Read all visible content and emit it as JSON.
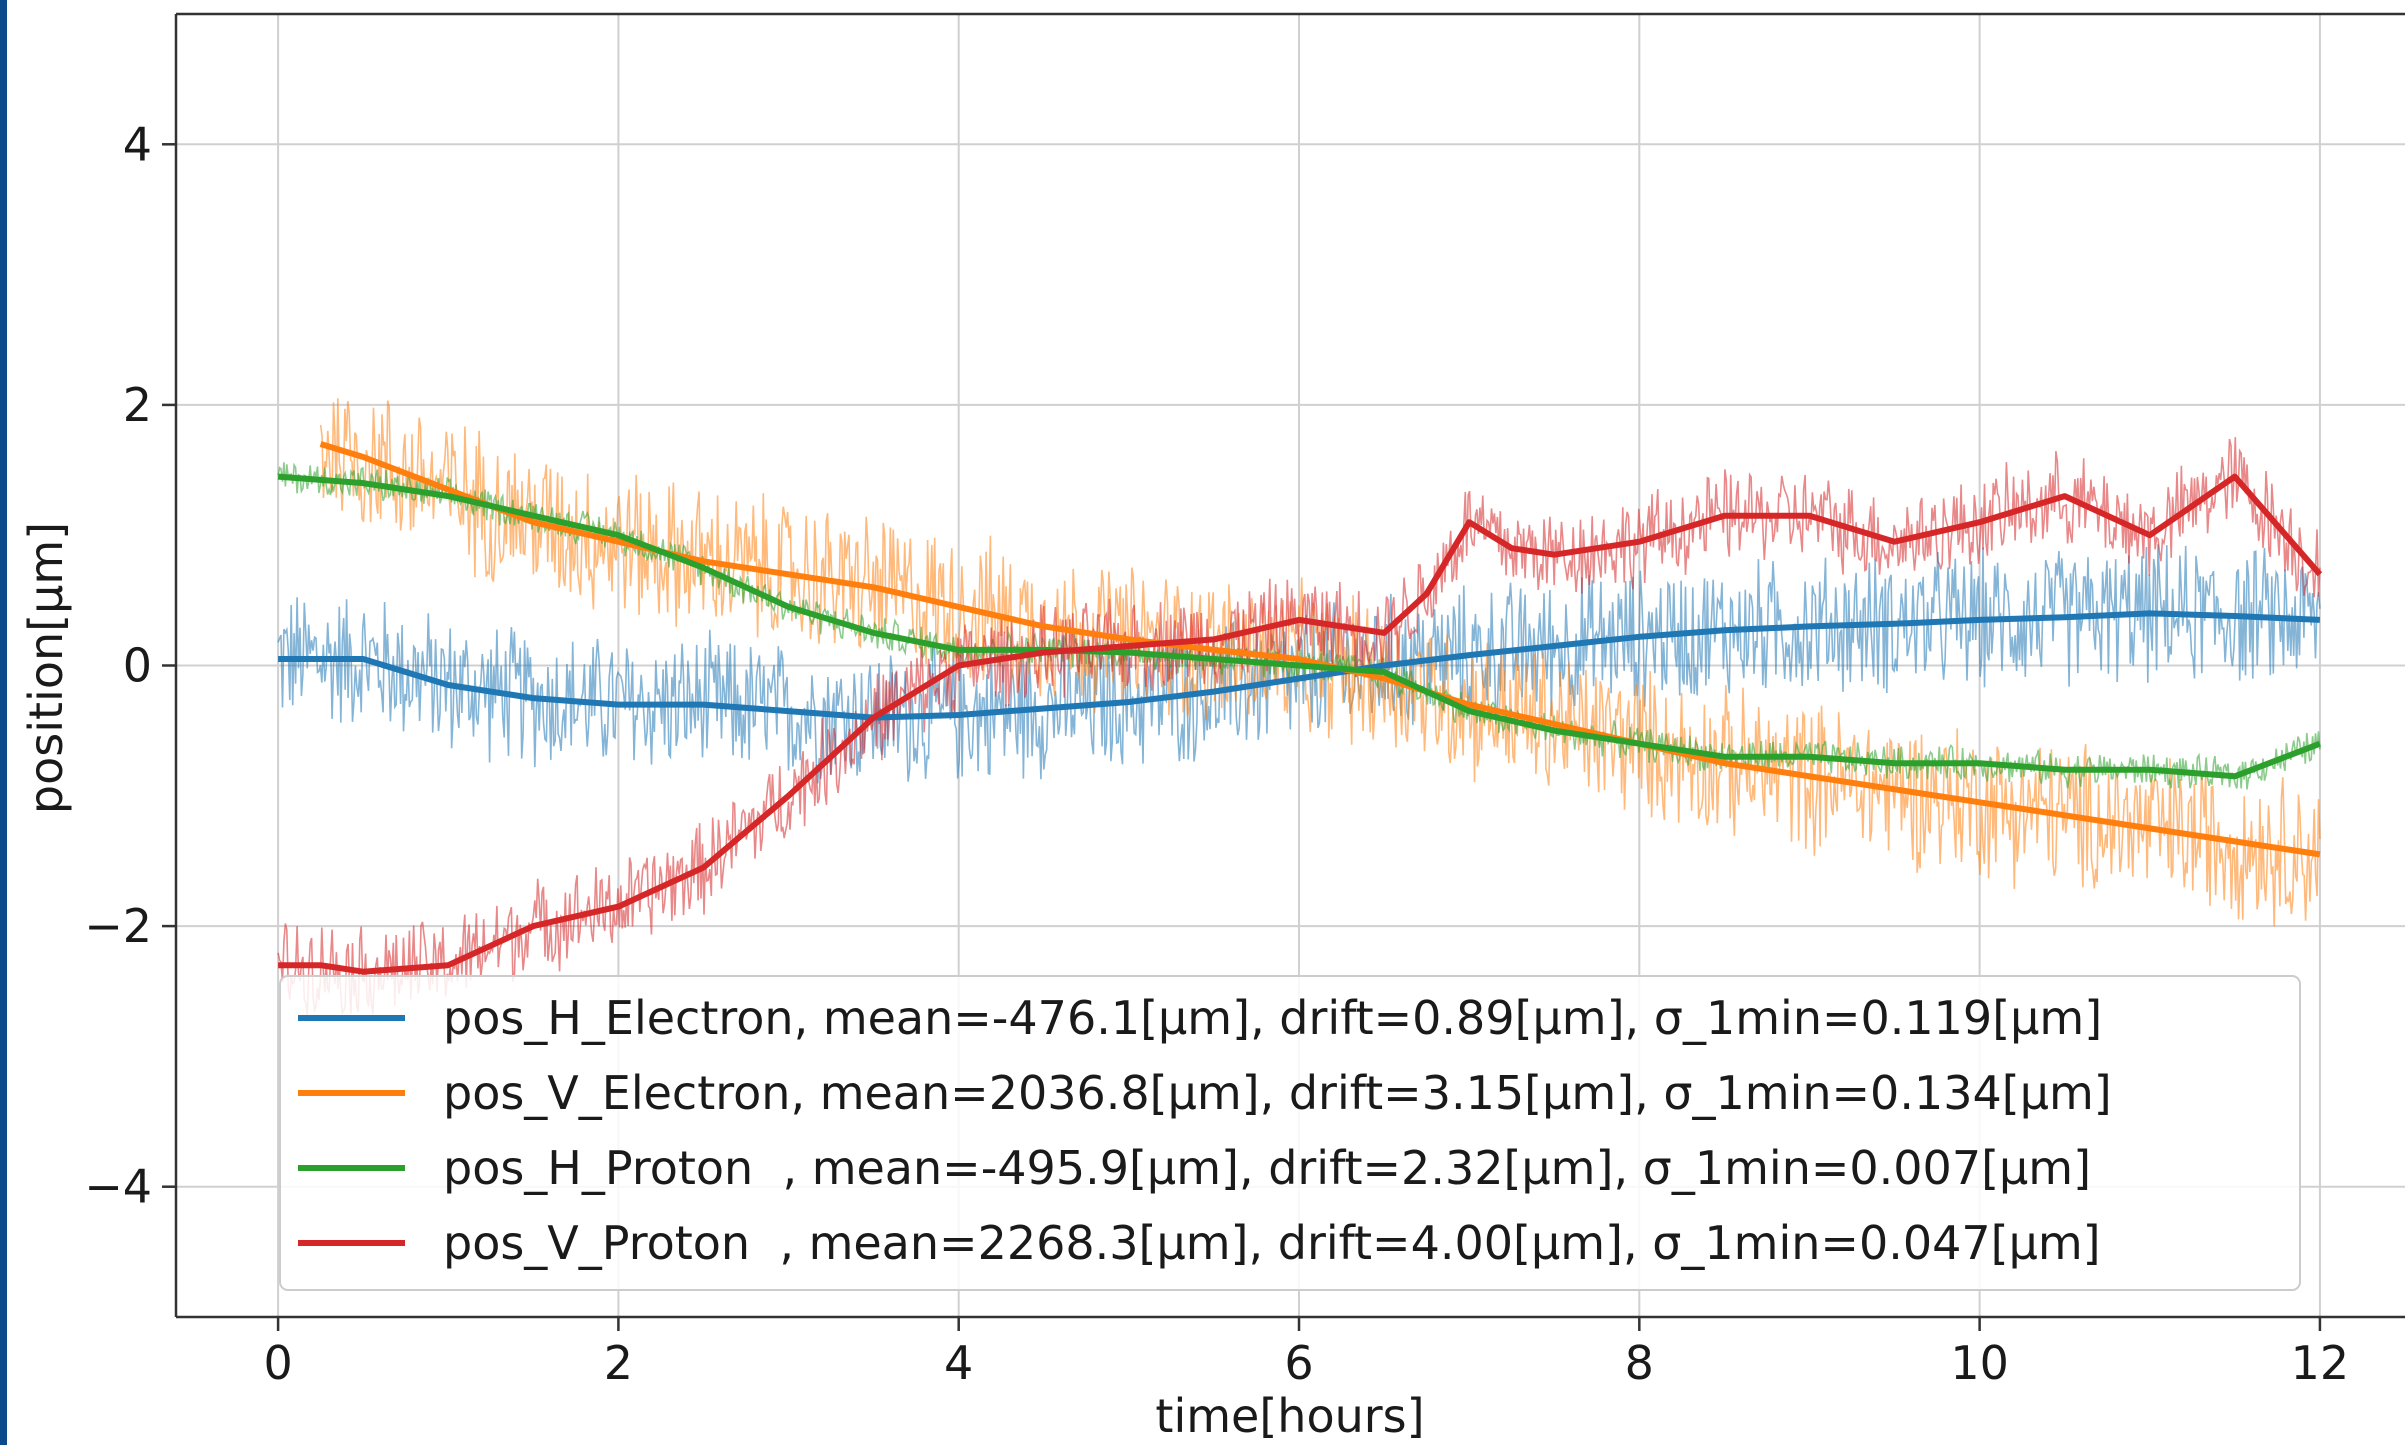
{
  "frame": {
    "accent_color": "#0b4a8b"
  },
  "chart_data": {
    "type": "line",
    "title": "",
    "xlabel": "time[hours]",
    "ylabel": "position[μm]",
    "xlim": [
      -0.6,
      12.5
    ],
    "ylim": [
      -5,
      5
    ],
    "xticks": [
      0,
      2,
      4,
      6,
      8,
      10,
      12
    ],
    "xtick_labels": [
      "0",
      "2",
      "4",
      "6",
      "8",
      "10",
      "12"
    ],
    "yticks": [
      -4,
      -2,
      0,
      2,
      4
    ],
    "ytick_labels": [
      "−4",
      "−2",
      "0",
      "2",
      "4"
    ],
    "grid": true,
    "legend_position": "lower-center",
    "series": [
      {
        "name": "pos_H_Electron, mean=-476.1[μm], drift=0.89[μm], σ_1min=0.119[μm]",
        "color": "#1f77b4",
        "noise_amplitude": 0.6,
        "x": [
          0,
          0.5,
          1,
          1.5,
          2,
          2.5,
          3,
          3.5,
          4,
          4.5,
          5,
          5.5,
          6,
          6.5,
          7,
          7.5,
          8,
          8.5,
          9,
          9.5,
          10,
          10.5,
          11,
          11.5,
          12
        ],
        "y": [
          0.05,
          0.05,
          -0.15,
          -0.25,
          -0.3,
          -0.3,
          -0.35,
          -0.4,
          -0.38,
          -0.33,
          -0.28,
          -0.2,
          -0.1,
          0.0,
          0.08,
          0.15,
          0.22,
          0.27,
          0.3,
          0.32,
          0.35,
          0.37,
          0.4,
          0.38,
          0.35
        ]
      },
      {
        "name": "pos_V_Electron, mean=2036.8[μm], drift=3.15[μm], σ_1min=0.134[μm]",
        "color": "#ff7f0e",
        "noise_amplitude": 0.65,
        "x": [
          0.25,
          0.5,
          1,
          1.5,
          2,
          2.5,
          3,
          3.5,
          4,
          4.5,
          5,
          5.5,
          6,
          6.5,
          7,
          7.5,
          8,
          8.5,
          9,
          9.5,
          10,
          10.5,
          11,
          11.5,
          12
        ],
        "y": [
          1.7,
          1.6,
          1.35,
          1.1,
          0.95,
          0.8,
          0.7,
          0.6,
          0.45,
          0.3,
          0.2,
          0.12,
          0.05,
          -0.1,
          -0.3,
          -0.45,
          -0.6,
          -0.75,
          -0.85,
          -0.95,
          -1.05,
          -1.15,
          -1.25,
          -1.35,
          -1.45
        ]
      },
      {
        "name": "pos_H_Proton  , mean=-495.9[μm], drift=2.32[μm], σ_1min=0.007[μm]",
        "color": "#2ca02c",
        "noise_amplitude": 0.15,
        "x": [
          0,
          0.5,
          1,
          1.5,
          2,
          2.5,
          3,
          3.5,
          4,
          4.5,
          5,
          5.5,
          6,
          6.5,
          7,
          7.5,
          8,
          8.5,
          9,
          9.5,
          10,
          10.5,
          11,
          11.5,
          12
        ],
        "y": [
          1.45,
          1.4,
          1.3,
          1.15,
          1.0,
          0.75,
          0.45,
          0.25,
          0.12,
          0.12,
          0.1,
          0.05,
          0.0,
          -0.05,
          -0.35,
          -0.5,
          -0.6,
          -0.7,
          -0.7,
          -0.75,
          -0.75,
          -0.8,
          -0.8,
          -0.85,
          -0.6
        ]
      },
      {
        "name": "pos_V_Proton  , mean=2268.3[μm], drift=4.00[μm], σ_1min=0.047[μm]",
        "color": "#d62728",
        "noise_amplitude": 0.4,
        "x": [
          0,
          0.25,
          0.5,
          1,
          1.5,
          2,
          2.5,
          3,
          3.5,
          4,
          4.5,
          5,
          5.5,
          6,
          6.5,
          6.75,
          7,
          7.25,
          7.5,
          8,
          8.5,
          9,
          9.5,
          10,
          10.5,
          11,
          11.5,
          12
        ],
        "y": [
          -2.3,
          -2.3,
          -2.35,
          -2.3,
          -2.0,
          -1.85,
          -1.55,
          -1.0,
          -0.4,
          0.0,
          0.1,
          0.15,
          0.2,
          0.35,
          0.25,
          0.55,
          1.1,
          0.9,
          0.85,
          0.95,
          1.15,
          1.15,
          0.95,
          1.1,
          1.3,
          1.0,
          1.45,
          0.7
        ]
      }
    ]
  }
}
